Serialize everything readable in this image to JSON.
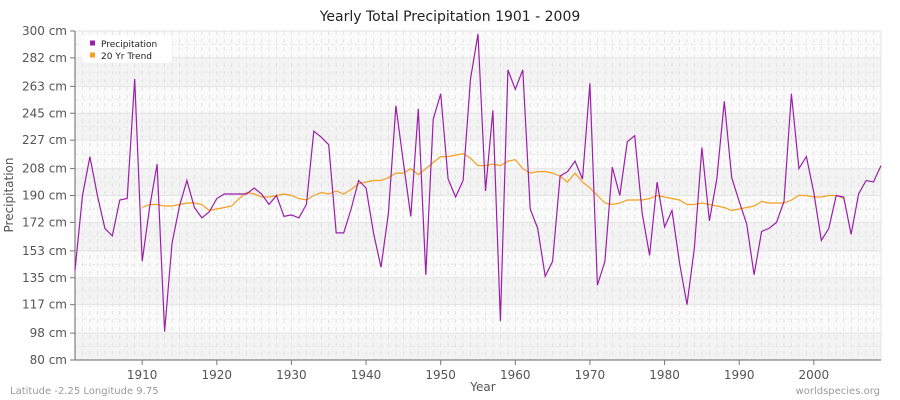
{
  "chart_data": {
    "type": "line",
    "title": "Yearly Total Precipitation 1901 - 2009",
    "xlabel": "Year",
    "ylabel": "Precipitation",
    "xlim": [
      1901,
      2009
    ],
    "ylim": [
      80,
      300
    ],
    "y_ticks": [
      80,
      98,
      117,
      135,
      153,
      172,
      190,
      208,
      227,
      245,
      263,
      282,
      300
    ],
    "y_tick_labels": [
      "80 cm",
      "98 cm",
      "117 cm",
      "135 cm",
      "153 cm",
      "172 cm",
      "190 cm",
      "208 cm",
      "227 cm",
      "245 cm",
      "263 cm",
      "282 cm",
      "300 cm"
    ],
    "x_ticks": [
      1910,
      1920,
      1930,
      1940,
      1950,
      1960,
      1970,
      1980,
      1990,
      2000
    ],
    "x_tick_labels": [
      "1910",
      "1920",
      "1930",
      "1940",
      "1950",
      "1960",
      "1970",
      "1980",
      "1990",
      "2000"
    ],
    "grid": true,
    "legend_position": "top-left",
    "series": [
      {
        "name": "Precipitation",
        "color": "#9b1fa8",
        "x_start": 1901,
        "values": [
          140,
          190,
          216,
          190,
          168,
          163,
          187,
          188,
          268,
          146,
          182,
          211,
          99,
          158,
          183,
          200,
          182,
          175,
          179,
          188,
          191,
          191,
          191,
          191,
          195,
          191,
          184,
          190,
          176,
          177,
          175,
          184,
          233,
          229,
          224,
          165,
          165,
          181,
          200,
          195,
          165,
          142,
          178,
          250,
          212,
          176,
          248,
          137,
          241,
          258,
          201,
          189,
          200,
          268,
          298,
          193,
          247,
          106,
          274,
          261,
          274,
          181,
          168,
          136,
          146,
          203,
          206,
          213,
          201,
          265,
          130,
          146,
          209,
          190,
          226,
          230,
          178,
          150,
          199,
          169,
          180,
          145,
          117,
          155,
          222,
          173,
          201,
          253,
          202,
          186,
          171,
          137,
          166,
          168,
          172,
          186,
          258,
          208,
          216,
          192,
          160,
          168,
          190,
          189,
          164,
          191,
          200,
          199,
          210
        ]
      },
      {
        "name": "20 Yr Trend",
        "color": "#f5a01e",
        "x_start": 1910,
        "values": [
          182,
          184,
          184,
          183,
          183,
          184,
          185,
          185,
          184,
          180,
          181,
          182,
          183,
          188,
          192,
          191,
          189,
          189,
          190,
          191,
          190,
          188,
          187,
          190,
          192,
          191,
          193,
          191,
          194,
          198,
          199,
          200,
          200,
          202,
          205,
          205,
          208,
          204,
          208,
          212,
          216,
          216,
          217,
          218,
          215,
          210,
          210,
          211,
          210,
          213,
          214,
          208,
          205,
          206,
          206,
          205,
          203,
          199,
          205,
          199,
          195,
          190,
          185,
          184,
          185,
          187,
          187,
          187,
          188,
          190,
          189,
          188,
          187,
          184,
          184,
          185,
          184,
          183,
          182,
          180,
          181,
          182,
          183,
          186,
          185,
          185,
          185,
          187,
          190,
          190,
          189,
          189,
          190,
          190,
          188
        ]
      }
    ],
    "annotations": {
      "footer_left": "Latitude -2.25 Longitude 9.75",
      "footer_right": "worldspecies.org"
    }
  },
  "legend": {
    "items": [
      {
        "label": "Precipitation",
        "color": "#9b1fa8"
      },
      {
        "label": "20 Yr Trend",
        "color": "#f5a01e"
      }
    ]
  },
  "footer": {
    "location": "Latitude -2.25 Longitude 9.75",
    "source": "worldspecies.org"
  }
}
